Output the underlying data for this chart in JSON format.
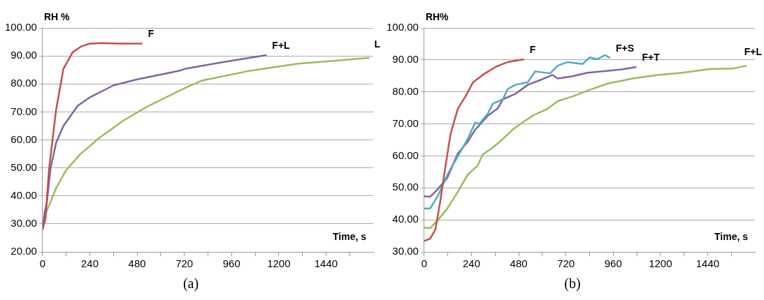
{
  "chart_data": [
    {
      "type": "line",
      "ylabel": "RH %",
      "xlabel": "Time, s",
      "annotations": [
        "(a)"
      ],
      "grid": "y",
      "legend": false,
      "marker": "none",
      "line_style": "solid",
      "xlim": [
        0,
        1680
      ],
      "ylim": [
        20,
        100
      ],
      "xticks": [
        0,
        {
          "value": 120,
          "label": null
        },
        240,
        {
          "value": 360,
          "label": null
        },
        480,
        {
          "value": 600,
          "label": null
        },
        720,
        {
          "value": 840,
          "label": null
        },
        960,
        {
          "value": 1080,
          "label": null
        },
        1200,
        {
          "value": 1320,
          "label": null
        },
        1440,
        {
          "value": 1560,
          "label": null
        }
      ],
      "yticks": [
        {
          "value": 20,
          "label": "20.00"
        },
        {
          "value": 30,
          "label": "30.00"
        },
        {
          "value": 40,
          "label": "40.00"
        },
        {
          "value": 50,
          "label": "50.00"
        },
        {
          "value": 60,
          "label": "60.00"
        },
        {
          "value": 70,
          "label": "70.00"
        },
        {
          "value": 80,
          "label": "80.00"
        },
        {
          "value": 90,
          "label": "90.00"
        },
        {
          "value": 100,
          "label": "100.00"
        }
      ],
      "series": [
        {
          "name": "F",
          "color": "#c0504d",
          "x": [
            0,
            15,
            33,
            69,
            106,
            153,
            200,
            240,
            300,
            400,
            507
          ],
          "values": [
            28,
            31.8,
            49.6,
            70.8,
            85.4,
            91.3,
            93.5,
            94.4,
            94.6,
            94.4,
            94.4
          ]
        },
        {
          "name": "F+L",
          "color": "#8064a2",
          "x": [
            0,
            10,
            22,
            40,
            69,
            106,
            179,
            240,
            361,
            481,
            689,
            726,
            933,
            1138
          ],
          "values": [
            28,
            34,
            37.7,
            49.6,
            59,
            65,
            72.2,
            75.2,
            79.5,
            81.6,
            84.6,
            85.4,
            88,
            90.3
          ]
        },
        {
          "name": "L",
          "color": "#9bbb59",
          "x": [
            15,
            69,
            117,
            190,
            288,
            408,
            532,
            726,
            810,
            1054,
            1298,
            1660
          ],
          "values": [
            33.5,
            42.8,
            48.9,
            54.8,
            60.7,
            66.8,
            71.9,
            78.6,
            81.2,
            84.7,
            87.2,
            89.3
          ]
        }
      ]
    },
    {
      "type": "line",
      "ylabel": "RH%",
      "xlabel": "Time, s",
      "annotations": [
        "(b)"
      ],
      "grid": "y",
      "legend": false,
      "marker": "none",
      "line_style": "solid",
      "xlim": [
        0,
        1680
      ],
      "ylim": [
        30,
        100
      ],
      "xticks": [
        0,
        {
          "value": 120,
          "label": null
        },
        240,
        {
          "value": 360,
          "label": null
        },
        480,
        {
          "value": 600,
          "label": null
        },
        720,
        {
          "value": 840,
          "label": null
        },
        960,
        {
          "value": 1080,
          "label": null
        },
        1200,
        {
          "value": 1320,
          "label": null
        },
        1440,
        {
          "value": 1560,
          "label": null
        }
      ],
      "yticks": [
        {
          "value": 30,
          "label": "30.00"
        },
        {
          "value": 40,
          "label": "40.00"
        },
        {
          "value": 50,
          "label": "50.00"
        },
        {
          "value": 60,
          "label": "60.00"
        },
        {
          "value": 70,
          "label": "70.00"
        },
        {
          "value": 80,
          "label": "80.00"
        },
        {
          "value": 90,
          "label": "90.00"
        },
        {
          "value": 100,
          "label": "100.00"
        }
      ],
      "series": [
        {
          "name": "F",
          "color": "#c0504d",
          "x": [
            0,
            30,
            57,
            80,
            107,
            133,
            171,
            210,
            248,
            297,
            362,
            423,
            507
          ],
          "values": [
            33.4,
            34.1,
            37,
            45.2,
            56.3,
            66.6,
            74.8,
            78.6,
            83,
            85.3,
            87.8,
            89.3,
            90.2
          ]
        },
        {
          "name": "F+S",
          "color": "#4bacc6",
          "x": [
            0,
            30,
            69,
            118,
            171,
            221,
            259,
            280,
            324,
            349,
            400,
            423,
            461,
            526,
            564,
            640,
            678,
            709,
            728,
            804,
            842,
            880,
            918,
            945
          ],
          "values": [
            43.6,
            43.6,
            47.4,
            54.1,
            59.9,
            65.3,
            70.4,
            70,
            73.3,
            76.3,
            77.7,
            80.8,
            82.2,
            83,
            86.4,
            85.8,
            88.2,
            88.9,
            89.3,
            88.7,
            90.8,
            90.2,
            91.5,
            90.6
          ]
        },
        {
          "name": "F+T",
          "color": "#8064a2",
          "x": [
            0,
            30,
            69,
            118,
            171,
            221,
            259,
            324,
            373,
            400,
            461,
            526,
            590,
            652,
            678,
            754,
            830,
            933,
            1010,
            1078
          ],
          "values": [
            47.4,
            47.2,
            49.6,
            53.2,
            60.8,
            64.4,
            68.2,
            72.6,
            74.8,
            77.7,
            79.3,
            82.2,
            83.7,
            85.3,
            84.2,
            84.9,
            86,
            86.6,
            87.1,
            87.8
          ]
        },
        {
          "name": "F+L",
          "color": "#9bbb59",
          "x": [
            0,
            30,
            69,
            118,
            171,
            221,
            272,
            297,
            349,
            400,
            449,
            499,
            552,
            629,
            678,
            754,
            830,
            933,
            1059,
            1185,
            1314,
            1440,
            1566,
            1638
          ],
          "values": [
            37.6,
            37.4,
            39.9,
            43.6,
            48.8,
            54.1,
            57,
            60.4,
            62.6,
            65.3,
            68.2,
            70.4,
            72.6,
            74.8,
            77.1,
            78.6,
            80.4,
            82.6,
            84.2,
            85.3,
            86,
            87.1,
            87.3,
            88.2
          ]
        }
      ]
    }
  ]
}
